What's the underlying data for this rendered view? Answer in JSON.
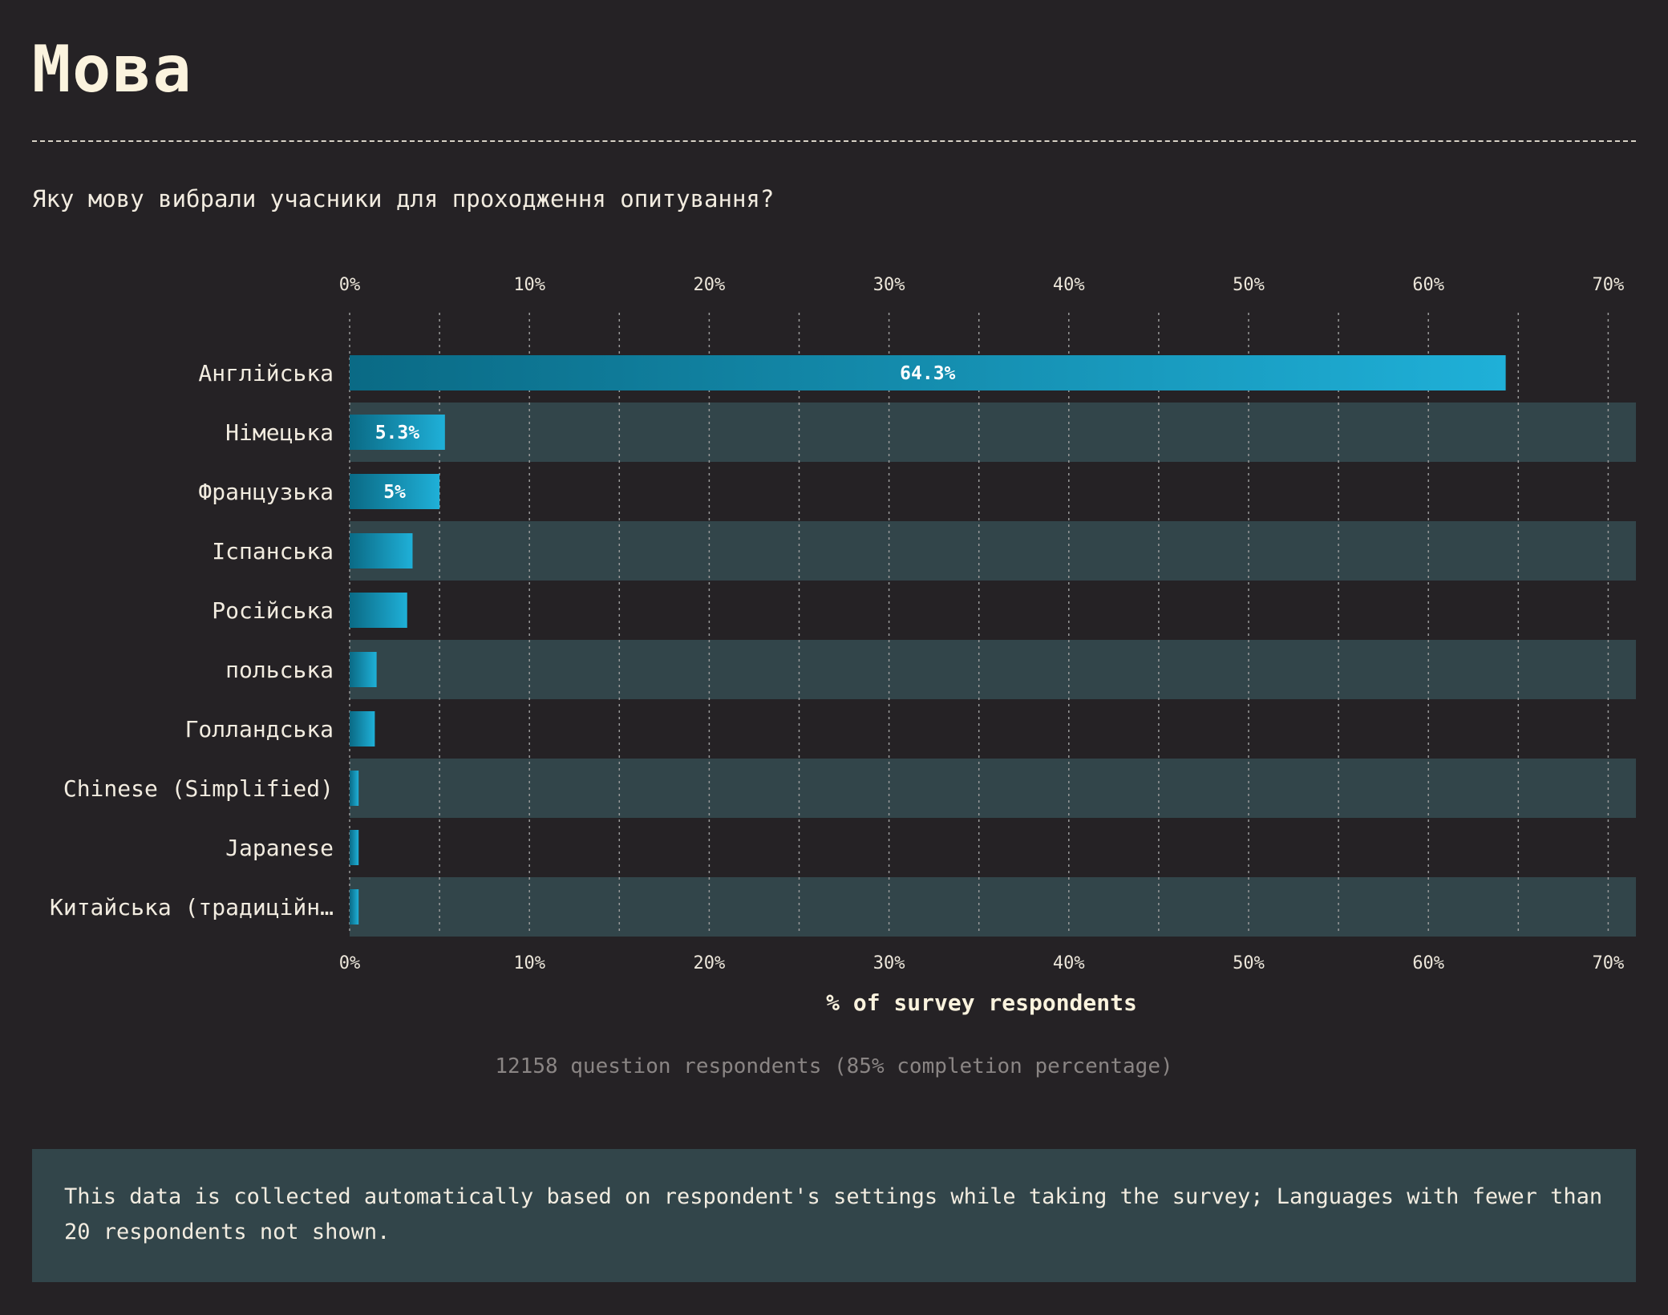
{
  "header": {
    "title": "Мова",
    "question": "Яку мову вибрали учасники для проходження опитування?"
  },
  "chart_data": {
    "type": "bar",
    "orientation": "horizontal",
    "categories": [
      "Англійська",
      "Німецька",
      "Французька",
      "Іспанська",
      "Російська",
      "польська",
      "Голландська",
      "Chinese (Simplified)",
      "Japanese",
      "Китайська (традиційн…"
    ],
    "values": [
      64.3,
      5.3,
      5.0,
      3.5,
      3.2,
      1.5,
      1.4,
      0.5,
      0.5,
      0.5
    ],
    "data_labels": [
      "64.3%",
      "5.3%",
      "5%",
      "",
      "",
      "",
      "",
      "",
      "",
      ""
    ],
    "xlabel": "% of survey respondents",
    "xlim": [
      0,
      72
    ],
    "xticks": [
      0,
      10,
      20,
      30,
      40,
      50,
      60,
      70
    ],
    "xtick_labels": [
      "0%",
      "10%",
      "20%",
      "30%",
      "40%",
      "50%",
      "60%",
      "70%"
    ],
    "minor_gridlines": [
      5,
      15,
      25,
      35,
      45,
      55,
      65
    ],
    "grid": true,
    "colors": {
      "bar_start": "#0a6a85",
      "bar_end": "#1fb0d8",
      "row_band": "#32454a",
      "grid": "#9a9a9a"
    }
  },
  "footer": {
    "respondents": "12158 question respondents (85% completion percentage)",
    "note": "This data is collected automatically based on respondent's settings while taking the survey; Languages with fewer than 20 respondents not shown."
  }
}
